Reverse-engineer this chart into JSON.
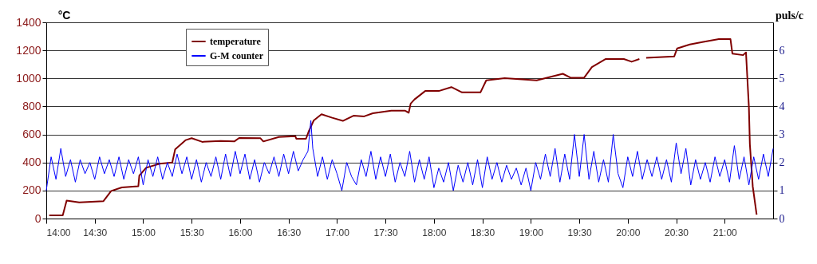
{
  "chart_data": {
    "type": "line",
    "ylabel": "°C",
    "y2label": "puls/c",
    "xlim": [
      14,
      21.5
    ],
    "xticks": [
      {
        "value": 14,
        "label": "14:00"
      },
      {
        "value": 14.5,
        "label": "14:30"
      },
      {
        "value": 15,
        "label": "15:00"
      },
      {
        "value": 15.5,
        "label": "15:30"
      },
      {
        "value": 16,
        "label": "16:00"
      },
      {
        "value": 16.5,
        "label": "16:30"
      },
      {
        "value": 17,
        "label": "17:00"
      },
      {
        "value": 17.5,
        "label": "17:30"
      },
      {
        "value": 18,
        "label": "18:00"
      },
      {
        "value": 18.5,
        "label": "18:30"
      },
      {
        "value": 19,
        "label": "19:00"
      },
      {
        "value": 19.5,
        "label": "19:30"
      },
      {
        "value": 20,
        "label": "20:00"
      },
      {
        "value": 20.5,
        "label": "20:30"
      },
      {
        "value": 21,
        "label": "21:00"
      }
    ],
    "ylim": [
      0,
      1400
    ],
    "yticks": [
      0,
      200,
      400,
      600,
      800,
      1000,
      1200,
      1400
    ],
    "y2lim": [
      0,
      7
    ],
    "y2ticks": [
      0,
      1,
      2,
      3,
      4,
      5,
      6
    ],
    "grid": "y",
    "legend": "top left",
    "marker": "none",
    "line_style": "solid",
    "series": [
      {
        "name": "temperature",
        "color": "#800000",
        "x": [
          14.03,
          14.17,
          14.21,
          14.34,
          14.59,
          14.67,
          14.78,
          14.95,
          14.96,
          15.03,
          15.17,
          15.3,
          15.33,
          15.44,
          15.5,
          15.61,
          15.8,
          15.94,
          15.99,
          16.21,
          16.24,
          16.4,
          16.57,
          16.58,
          16.68,
          16.71,
          16.76,
          16.84,
          16.95,
          17.06,
          17.17,
          17.28,
          17.37,
          17.56,
          17.7,
          17.74,
          17.76,
          17.8,
          17.91,
          18.05,
          18.18,
          18.29,
          18.48,
          18.54,
          18.73,
          19.06,
          19.33,
          19.41,
          19.55,
          19.63,
          19.77,
          19.96,
          20.04,
          20.12,
          20.15,
          20.19,
          20.48,
          20.51,
          20.64,
          20.78,
          20.94,
          21.06,
          21.08,
          21.19,
          21.22,
          21.25,
          21.26,
          21.29,
          21.33
        ],
        "values": [
          23,
          23,
          128,
          115,
          124,
          197,
          222,
          231,
          306,
          362,
          391,
          400,
          494,
          560,
          573,
          547,
          554,
          550,
          575,
          573,
          550,
          582,
          588,
          569,
          569,
          625,
          700,
          744,
          719,
          697,
          734,
          729,
          751,
          770,
          770,
          755,
          820,
          850,
          910,
          910,
          938,
          900,
          900,
          986,
          1001,
          986,
          1033,
          1005,
          1005,
          1081,
          1138,
          1138,
          1119,
          1138,
          null,
          1147,
          1157,
          1214,
          1242,
          1261,
          1280,
          1280,
          1176,
          1166,
          1185,
          796,
          531,
          228,
          28
        ]
      },
      {
        "name": "G-M counter",
        "color": "#0000ff",
        "axis": "y2",
        "x": [
          14.0,
          14.05,
          14.1,
          14.15,
          14.2,
          14.25,
          14.3,
          14.35,
          14.4,
          14.45,
          14.5,
          14.55,
          14.6,
          14.65,
          14.7,
          14.75,
          14.8,
          14.85,
          14.9,
          14.95,
          15.0,
          15.05,
          15.1,
          15.15,
          15.2,
          15.25,
          15.3,
          15.35,
          15.4,
          15.45,
          15.5,
          15.55,
          15.6,
          15.65,
          15.7,
          15.75,
          15.8,
          15.85,
          15.9,
          15.95,
          16.0,
          16.05,
          16.1,
          16.15,
          16.2,
          16.25,
          16.3,
          16.35,
          16.4,
          16.45,
          16.5,
          16.55,
          16.6,
          16.65,
          16.7,
          16.73,
          16.75,
          16.8,
          16.85,
          16.9,
          16.95,
          17.0,
          17.05,
          17.1,
          17.15,
          17.2,
          17.25,
          17.3,
          17.35,
          17.4,
          17.45,
          17.5,
          17.55,
          17.6,
          17.65,
          17.7,
          17.75,
          17.8,
          17.85,
          17.9,
          17.95,
          18.0,
          18.05,
          18.1,
          18.15,
          18.2,
          18.25,
          18.3,
          18.35,
          18.4,
          18.45,
          18.5,
          18.55,
          18.6,
          18.65,
          18.7,
          18.75,
          18.8,
          18.85,
          18.9,
          18.95,
          19.0,
          19.05,
          19.1,
          19.15,
          19.2,
          19.25,
          19.3,
          19.35,
          19.4,
          19.45,
          19.5,
          19.55,
          19.6,
          19.65,
          19.7,
          19.75,
          19.8,
          19.85,
          19.9,
          19.95,
          20.0,
          20.05,
          20.1,
          20.15,
          20.2,
          20.25,
          20.3,
          20.35,
          20.4,
          20.45,
          20.5,
          20.55,
          20.6,
          20.65,
          20.7,
          20.75,
          20.8,
          20.85,
          20.9,
          20.95,
          21.0,
          21.05,
          21.1,
          21.15,
          21.2,
          21.25,
          21.3,
          21.35,
          21.4,
          21.45,
          21.5
        ],
        "values": [
          1.0,
          2.2,
          1.4,
          2.5,
          1.5,
          2.1,
          1.3,
          2.1,
          1.6,
          2.0,
          1.4,
          2.2,
          1.6,
          2.1,
          1.5,
          2.2,
          1.4,
          2.1,
          1.6,
          2.2,
          1.2,
          2.1,
          1.5,
          2.2,
          1.4,
          2.0,
          1.5,
          2.3,
          1.6,
          2.2,
          1.4,
          2.1,
          1.3,
          2.0,
          1.5,
          2.2,
          1.4,
          2.3,
          1.5,
          2.4,
          1.6,
          2.3,
          1.4,
          2.1,
          1.3,
          2.0,
          1.6,
          2.2,
          1.5,
          2.3,
          1.6,
          2.4,
          1.7,
          2.1,
          2.4,
          3.5,
          2.5,
          1.5,
          2.2,
          1.4,
          2.1,
          1.6,
          1.0,
          2.0,
          1.5,
          1.2,
          2.1,
          1.5,
          2.4,
          1.4,
          2.2,
          1.5,
          2.3,
          1.3,
          2.0,
          1.5,
          2.4,
          1.3,
          2.1,
          1.4,
          2.2,
          1.1,
          1.8,
          1.3,
          2.0,
          1.0,
          1.9,
          1.3,
          2.0,
          1.2,
          2.1,
          1.1,
          2.2,
          1.4,
          2.0,
          1.3,
          1.9,
          1.4,
          1.8,
          1.2,
          1.8,
          1.0,
          2.0,
          1.4,
          2.3,
          1.5,
          2.5,
          1.3,
          2.3,
          1.4,
          3.0,
          1.5,
          3.0,
          1.4,
          2.4,
          1.3,
          2.1,
          1.3,
          3.0,
          1.6,
          1.1,
          2.2,
          1.5,
          2.4,
          1.4,
          2.1,
          1.5,
          2.2,
          1.4,
          2.1,
          1.3,
          2.7,
          1.6,
          2.5,
          1.2,
          2.1,
          1.4,
          2.0,
          1.3,
          2.2,
          1.5,
          2.1,
          1.3,
          2.6,
          1.4,
          2.2,
          1.2,
          2.2,
          1.4,
          2.3,
          1.5,
          2.5
        ]
      }
    ]
  }
}
